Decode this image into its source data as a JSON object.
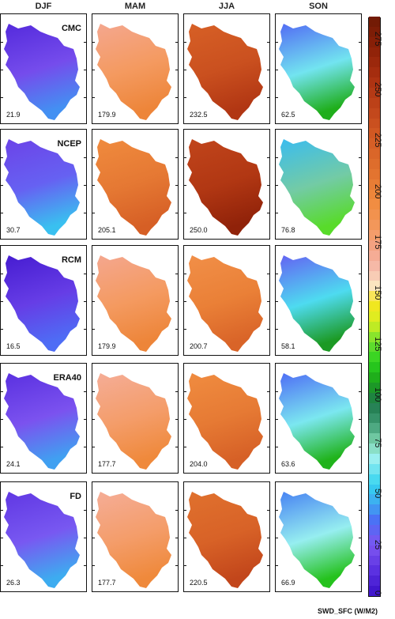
{
  "chart_data": {
    "type": "heatmap",
    "title": "",
    "seasons": [
      "DJF",
      "MAM",
      "JJA",
      "SON"
    ],
    "models": [
      "CMC",
      "NCEP",
      "RCM",
      "ERA40",
      "FD"
    ],
    "values": [
      [
        21.9,
        179.9,
        232.5,
        62.5
      ],
      [
        30.7,
        205.1,
        250.0,
        76.8
      ],
      [
        16.5,
        179.9,
        200.7,
        58.1
      ],
      [
        24.1,
        177.7,
        204.0,
        63.6
      ],
      [
        26.3,
        177.7,
        220.5,
        66.9
      ]
    ],
    "value_labels": [
      [
        "21.9",
        "179.9",
        "232.5",
        "62.5"
      ],
      [
        "30.7",
        "205.1",
        "250.0",
        "76.8"
      ],
      [
        "16.5",
        "179.9",
        "200.7",
        "58.1"
      ],
      [
        "24.1",
        "177.7",
        "204.0",
        "63.6"
      ],
      [
        "26.3",
        "177.7",
        "220.5",
        "66.9"
      ]
    ],
    "colorbar": {
      "label": "SWD_SFC (W/M2)",
      "range": [
        0,
        285
      ],
      "ticks": [
        "0",
        "25",
        "50",
        "75",
        "100",
        "125",
        "150",
        "175",
        "200",
        "225",
        "250",
        "275"
      ]
    }
  }
}
